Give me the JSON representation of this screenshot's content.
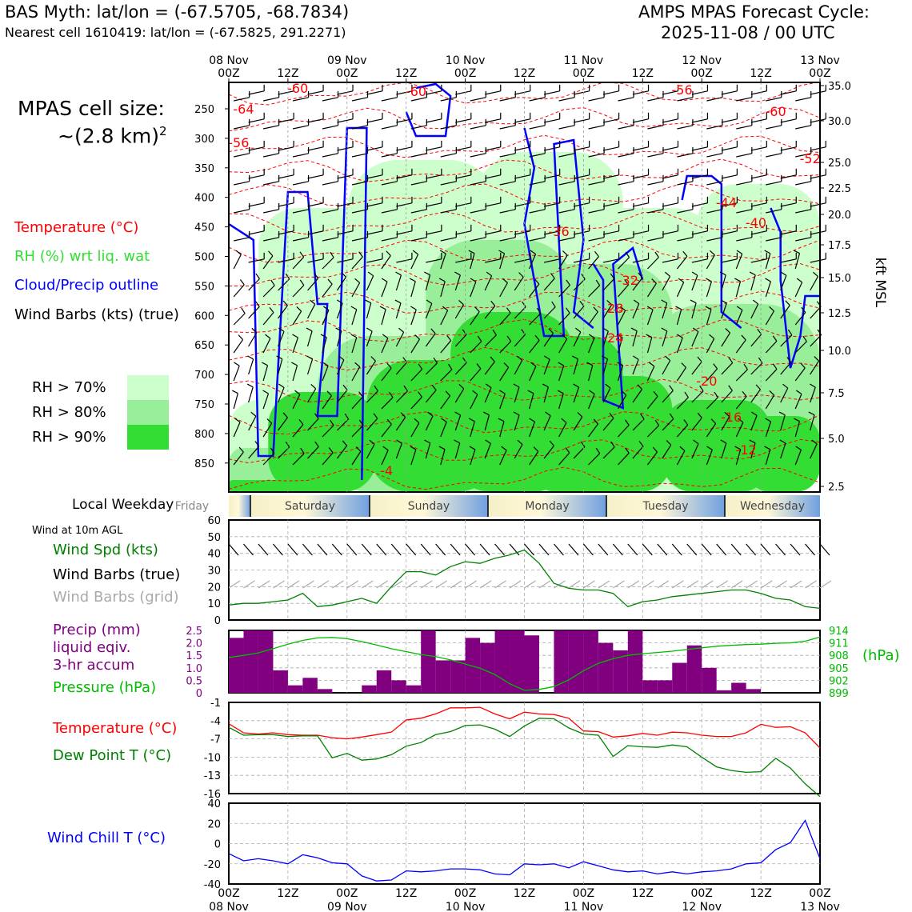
{
  "header": {
    "station_line": "BAS Myth: lat/lon = (-67.5705, -68.7834)",
    "nearest_cell_line": "Nearest cell 1610419: lat/lon = (-67.5825, 291.2271)",
    "cycle_title": "AMPS MPAS Forecast Cycle:",
    "cycle_value": "2025-11-08 / 00 UTC"
  },
  "cell_size": {
    "line1": "MPAS cell size:",
    "line2_prefix": "~(2.8 km)",
    "line2_sup": "2"
  },
  "colors": {
    "temperature": "#ff0000",
    "rh_green": "#33dd33",
    "cloud_blue": "#0000ff",
    "precip_purple": "#800080",
    "pressure_green": "#00bb00",
    "dewpoint_green": "#008000",
    "rh70": "#ccffcc",
    "rh80": "#99ee99",
    "rh90": "#33dd33",
    "grid_gray": "#aaaaaa"
  },
  "chart_data": [
    {
      "type": "heatmap",
      "name": "time-height cross section",
      "legend": {
        "temperature": "Temperature (°C)",
        "rh": "RH (%) wrt liq. wat",
        "cloud": "Cloud/Precip outline",
        "wind": "Wind Barbs (kts) (true)",
        "rh70": "RH > 70%",
        "rh80": "RH > 80%",
        "rh90": "RH > 90%"
      },
      "top_ticks": [
        {
          "date": "08 Nov",
          "hour": "00Z"
        },
        {
          "date": "",
          "hour": "12Z"
        },
        {
          "date": "09 Nov",
          "hour": "00Z"
        },
        {
          "date": "",
          "hour": "12Z"
        },
        {
          "date": "10 Nov",
          "hour": "00Z"
        },
        {
          "date": "",
          "hour": "12Z"
        },
        {
          "date": "11 Nov",
          "hour": "00Z"
        },
        {
          "date": "",
          "hour": "12Z"
        },
        {
          "date": "12 Nov",
          "hour": "00Z"
        },
        {
          "date": "",
          "hour": "12Z"
        },
        {
          "date": "13 Nov",
          "hour": "00Z"
        }
      ],
      "pressure_levels_hpa": [
        "250",
        "300",
        "350",
        "400",
        "450",
        "500",
        "550",
        "600",
        "650",
        "700",
        "750",
        "800",
        "850"
      ],
      "height_kft": [
        "35.0",
        "30.0",
        "25.0",
        "22.5",
        "20.0",
        "17.5",
        "15.0",
        "12.5",
        "10.0",
        "7.5",
        "5.0",
        "2.5"
      ],
      "right_axis_label": "kft MSL",
      "temperature_labels": [
        "-60",
        "-64",
        "-56",
        "-60",
        "-56",
        "-60",
        "-52",
        "-44",
        "-40",
        "-36",
        "-32",
        "-28",
        "-24",
        "-20",
        "-16",
        "-12",
        "-4"
      ]
    },
    {
      "type": "table",
      "name": "local weekday strip",
      "label": "Local Weekday",
      "days": [
        "Friday",
        "Saturday",
        "Sunday",
        "Monday",
        "Tuesday",
        "Wednesday"
      ]
    },
    {
      "type": "line",
      "name": "10m wind",
      "title": "Wind at 10m AGL",
      "legend": [
        "Wind Spd (kts)",
        "Wind Barbs (true)",
        "Wind Barbs (grid)"
      ],
      "y_ticks": [
        "0",
        "10",
        "20",
        "30",
        "40",
        "50",
        "60"
      ],
      "ylim": [
        0,
        60
      ],
      "x_hours": [
        0,
        3,
        6,
        9,
        12,
        15,
        18,
        21,
        24,
        27,
        30,
        33,
        36,
        39,
        42,
        45,
        48,
        51,
        54,
        57,
        60,
        63,
        66,
        69,
        72,
        75,
        78,
        81,
        84,
        87,
        90,
        93,
        96,
        99,
        102,
        105,
        108,
        111,
        114,
        117,
        120
      ],
      "values": [
        9,
        10,
        10,
        11,
        12,
        16,
        8,
        9,
        11,
        13,
        10,
        20,
        29,
        29,
        27,
        32,
        35,
        34,
        37,
        39,
        42,
        34,
        22,
        19,
        18,
        18,
        16,
        8,
        11,
        12,
        14,
        15,
        16,
        17,
        18,
        18,
        16,
        13,
        12,
        8,
        7
      ]
    },
    {
      "type": "bar",
      "name": "precip and pressure",
      "legend": [
        "Precip (mm)",
        "liquid eqiv.",
        "3-hr accum",
        "Pressure (hPa)"
      ],
      "right_label": "(hPa)",
      "precip_ticks": [
        "0",
        "0.5",
        "1.0",
        "1.5",
        "2.0",
        "2.5"
      ],
      "precip_ylim": [
        0,
        2.5
      ],
      "pressure_ticks": [
        "899",
        "902",
        "905",
        "908",
        "911",
        "914"
      ],
      "pressure_ylim": [
        899,
        914
      ],
      "x_hours": [
        0,
        3,
        6,
        9,
        12,
        15,
        18,
        21,
        24,
        27,
        30,
        33,
        36,
        39,
        42,
        45,
        48,
        51,
        54,
        57,
        60,
        63,
        66,
        69,
        72,
        75,
        78,
        81,
        84,
        87,
        90,
        93,
        96,
        99,
        102,
        105,
        108,
        111,
        114,
        117,
        120
      ],
      "precip": [
        2.2,
        2.5,
        2.5,
        0.9,
        0.3,
        0.6,
        0.15,
        0,
        0,
        0.3,
        0.9,
        0.5,
        0.3,
        2.5,
        1.3,
        1.3,
        2.2,
        2.0,
        2.5,
        2.5,
        2.3,
        0,
        2.5,
        2.5,
        2.5,
        2.0,
        1.7,
        2.5,
        0.5,
        0.5,
        1.2,
        1.9,
        1.0,
        0.1,
        0.4,
        0.15,
        0,
        0,
        0,
        0,
        0
      ],
      "pressure": [
        907.5,
        908.0,
        908.6,
        909.6,
        910.7,
        911.6,
        912.2,
        912.3,
        912.0,
        911.3,
        910.5,
        909.6,
        908.9,
        908.2,
        907.7,
        906.9,
        905.9,
        904.9,
        903.4,
        901.2,
        899.6,
        899.8,
        900.5,
        902.1,
        904.3,
        906.1,
        907.2,
        908.0,
        908.4,
        908.7,
        909.0,
        909.4,
        909.8,
        910.2,
        910.4,
        910.6,
        910.7,
        910.9,
        911.0,
        911.4,
        912.4
      ]
    },
    {
      "type": "line",
      "name": "temperature and dew point",
      "legend": [
        "Temperature (°C)",
        "Dew Point T (°C)"
      ],
      "y_ticks": [
        "-1",
        "-4",
        "-7",
        "-10",
        "-13",
        "-16"
      ],
      "ylim": [
        -16,
        -1
      ],
      "x_hours": [
        0,
        3,
        6,
        9,
        12,
        15,
        18,
        21,
        24,
        27,
        30,
        33,
        36,
        39,
        42,
        45,
        48,
        51,
        54,
        57,
        60,
        63,
        66,
        69,
        72,
        75,
        78,
        81,
        84,
        87,
        90,
        93,
        96,
        99,
        102,
        105,
        108,
        111,
        114,
        117,
        120
      ],
      "temperature": [
        -4.5,
        -6.0,
        -6.2,
        -6.0,
        -6.3,
        -6.4,
        -6.4,
        -6.8,
        -7.0,
        -6.7,
        -6.3,
        -5.9,
        -3.9,
        -3.6,
        -2.9,
        -1.9,
        -1.9,
        -1.8,
        -2.9,
        -3.7,
        -2.6,
        -2.9,
        -3.0,
        -3.6,
        -5.7,
        -5.8,
        -6.7,
        -6.5,
        -6.1,
        -6.4,
        -5.9,
        -6.0,
        -6.4,
        -6.6,
        -6.6,
        -6.0,
        -4.6,
        -5.1,
        -5.0,
        -6.0,
        -8.5
      ],
      "dewpoint": [
        -5.1,
        -6.4,
        -6.3,
        -6.3,
        -6.6,
        -6.5,
        -6.5,
        -10.1,
        -9.4,
        -10.5,
        -10.3,
        -9.6,
        -8.2,
        -7.6,
        -6.3,
        -5.8,
        -4.8,
        -4.7,
        -5.4,
        -6.6,
        -4.9,
        -3.6,
        -3.7,
        -5.2,
        -6.2,
        -6.4,
        -9.9,
        -8.1,
        -8.3,
        -8.4,
        -8.0,
        -8.3,
        -10.0,
        -11.6,
        -12.2,
        -12.5,
        -12.4,
        -10.2,
        -11.8,
        -14.4,
        -16.5
      ]
    },
    {
      "type": "line",
      "name": "wind chill",
      "legend": [
        "Wind Chill T (°C)"
      ],
      "y_ticks": [
        "40",
        "20",
        "0",
        "-20",
        "-40"
      ],
      "ylim": [
        -40,
        40
      ],
      "x_hours": [
        0,
        3,
        6,
        9,
        12,
        15,
        18,
        21,
        24,
        27,
        30,
        33,
        36,
        39,
        42,
        45,
        48,
        51,
        54,
        57,
        60,
        63,
        66,
        69,
        72,
        75,
        78,
        81,
        84,
        87,
        90,
        93,
        96,
        99,
        102,
        105,
        108,
        111,
        114,
        117,
        120
      ],
      "values": [
        -10,
        -17,
        -15,
        -17,
        -20,
        -11,
        -14,
        -19,
        -20,
        -32,
        -37,
        -36,
        -27,
        -28,
        -27,
        -25,
        -25,
        -26,
        -30,
        -31,
        -20,
        -21,
        -20,
        -24,
        -18,
        -22,
        -26,
        -28,
        -27,
        -30,
        -28,
        -30,
        -28,
        -27,
        -25,
        -20,
        -19,
        -6,
        1,
        23,
        -15
      ]
    }
  ],
  "bottom_axis": [
    {
      "hour": "00Z",
      "date": "08 Nov"
    },
    {
      "hour": "12Z",
      "date": ""
    },
    {
      "hour": "00Z",
      "date": "09 Nov"
    },
    {
      "hour": "12Z",
      "date": ""
    },
    {
      "hour": "00Z",
      "date": "10 Nov"
    },
    {
      "hour": "12Z",
      "date": ""
    },
    {
      "hour": "00Z",
      "date": "11 Nov"
    },
    {
      "hour": "12Z",
      "date": ""
    },
    {
      "hour": "00Z",
      "date": "12 Nov"
    },
    {
      "hour": "12Z",
      "date": ""
    },
    {
      "hour": "00Z",
      "date": "13 Nov"
    }
  ]
}
